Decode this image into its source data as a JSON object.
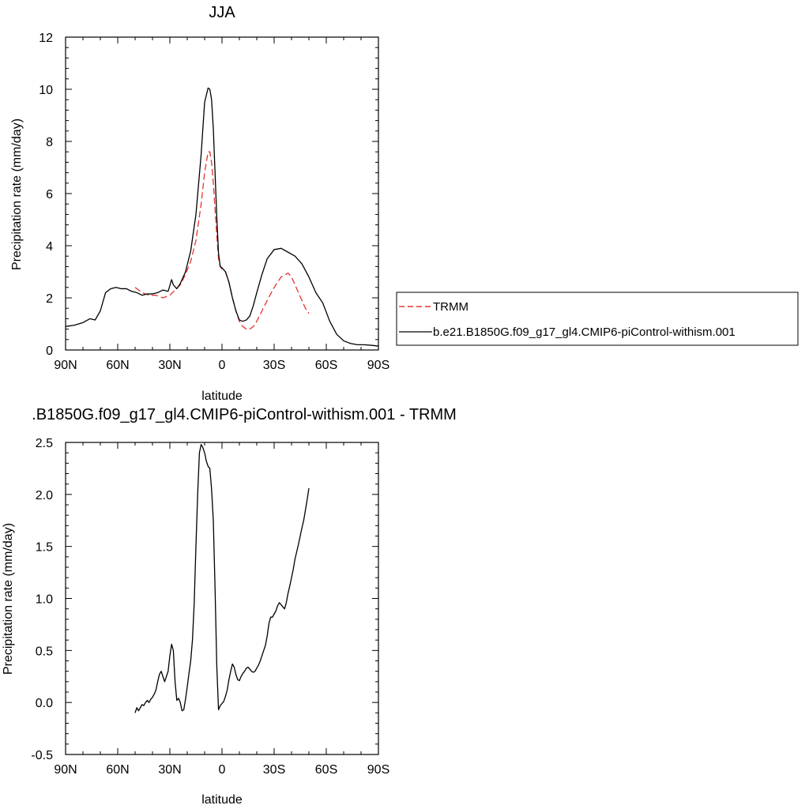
{
  "chart_data": [
    {
      "type": "line",
      "title": "JJA",
      "xlabel": "latitude",
      "ylabel": "Precipitation rate (mm/day)",
      "xlim": [
        90,
        -90
      ],
      "ylim": [
        0,
        12
      ],
      "x_ticks": [
        90,
        60,
        30,
        0,
        -30,
        -60,
        -90
      ],
      "x_tick_labels": [
        "90N",
        "60N",
        "30N",
        "0",
        "30S",
        "60S",
        "90S"
      ],
      "y_ticks": [
        0,
        2,
        4,
        6,
        8,
        10,
        12
      ],
      "y_tick_labels": [
        "0",
        "2",
        "4",
        "6",
        "8",
        "10",
        "12"
      ],
      "legend_position": "right",
      "series": [
        {
          "name": "TRMM",
          "color": "#e8322b",
          "style": "dashed",
          "x": [
            50,
            46,
            42,
            38,
            34,
            30,
            27,
            24,
            21,
            18,
            15,
            12,
            10,
            8,
            7,
            6,
            5,
            4,
            3,
            2,
            1,
            0,
            -2,
            -4,
            -6,
            -8,
            -10,
            -12,
            -14,
            -16,
            -18,
            -20,
            -23,
            -26,
            -30,
            -34,
            -38,
            -40,
            -42,
            -44,
            -46,
            -48,
            -50
          ],
          "y": [
            2.4,
            2.2,
            2.1,
            2.1,
            2.0,
            2.1,
            2.3,
            2.5,
            2.9,
            3.4,
            4.2,
            5.6,
            6.8,
            7.6,
            7.6,
            7.2,
            6.4,
            5.4,
            4.4,
            3.5,
            3.2,
            3.1,
            3.0,
            2.6,
            2.0,
            1.5,
            1.1,
            0.9,
            0.8,
            0.8,
            0.9,
            1.1,
            1.5,
            1.9,
            2.4,
            2.8,
            2.95,
            2.8,
            2.5,
            2.2,
            1.9,
            1.6,
            1.4
          ]
        },
        {
          "name": "b.e21.B1850G.f09_g17_gl4.CMIP6-piControl-withism.001",
          "color": "#000000",
          "style": "solid",
          "x": [
            90,
            85,
            80,
            76,
            73,
            70,
            67,
            64,
            61,
            58,
            55,
            52,
            49,
            46,
            43,
            40,
            37,
            34,
            31,
            29,
            28,
            26,
            24,
            21,
            18,
            15,
            12,
            10,
            8,
            7,
            6,
            5,
            4,
            3,
            2,
            1,
            0,
            -2,
            -4,
            -6,
            -8,
            -10,
            -12,
            -14,
            -16,
            -18,
            -20,
            -23,
            -26,
            -30,
            -34,
            -38,
            -42,
            -46,
            -50,
            -54,
            -58,
            -62,
            -66,
            -70,
            -74,
            -78,
            -82,
            -86,
            -90
          ],
          "y": [
            0.9,
            0.95,
            1.05,
            1.2,
            1.15,
            1.5,
            2.2,
            2.35,
            2.4,
            2.35,
            2.35,
            2.25,
            2.2,
            2.1,
            2.15,
            2.15,
            2.2,
            2.3,
            2.25,
            2.7,
            2.5,
            2.35,
            2.55,
            3.0,
            3.8,
            5.2,
            7.5,
            9.5,
            10.05,
            10.0,
            9.6,
            8.5,
            6.8,
            5.1,
            3.7,
            3.2,
            3.15,
            3.0,
            2.6,
            2.0,
            1.5,
            1.15,
            1.1,
            1.15,
            1.3,
            1.7,
            2.2,
            2.9,
            3.5,
            3.85,
            3.9,
            3.75,
            3.6,
            3.3,
            2.8,
            2.2,
            1.8,
            1.1,
            0.6,
            0.35,
            0.25,
            0.2,
            0.2,
            0.18,
            0.15
          ]
        }
      ]
    },
    {
      "type": "line",
      "title": ".B1850G.f09_g17_gl4.CMIP6-piControl-withism.001 - TRMM",
      "xlabel": "latitude",
      "ylabel": "Precipitation rate (mm/day)",
      "xlim": [
        90,
        -90
      ],
      "ylim": [
        -0.5,
        2.5
      ],
      "x_ticks": [
        90,
        60,
        30,
        0,
        -30,
        -60,
        -90
      ],
      "x_tick_labels": [
        "90N",
        "60N",
        "30N",
        "0",
        "30S",
        "60S",
        "90S"
      ],
      "y_ticks": [
        -0.5,
        0.0,
        0.5,
        1.0,
        1.5,
        2.0,
        2.5
      ],
      "y_tick_labels": [
        "-0.5",
        "0.0",
        "0.5",
        "1.0",
        "1.5",
        "2.0",
        "2.5"
      ],
      "series": [
        {
          "color": "#000000",
          "style": "solid",
          "x": [
            50,
            49,
            48,
            47,
            46,
            45,
            44,
            43,
            42,
            41,
            40,
            39,
            38,
            37,
            36,
            35,
            34,
            33,
            32,
            31,
            30,
            29,
            28,
            27,
            26,
            25,
            24,
            23,
            22,
            21,
            20,
            19,
            18,
            17,
            16,
            15,
            14,
            13,
            12,
            11,
            10,
            9,
            8,
            7,
            6,
            5,
            4,
            3,
            2,
            1,
            0,
            -1,
            -2,
            -3,
            -4,
            -5,
            -6,
            -7,
            -8,
            -9,
            -10,
            -11,
            -12,
            -13,
            -14,
            -15,
            -16,
            -17,
            -18,
            -19,
            -20,
            -21,
            -22,
            -23,
            -24,
            -25,
            -26,
            -27,
            -28,
            -29,
            -30,
            -31,
            -32,
            -33,
            -34,
            -35,
            -36,
            -37,
            -38,
            -39,
            -40,
            -41,
            -42,
            -43,
            -44,
            -45,
            -46,
            -47,
            -48,
            -49,
            -50
          ],
          "y": [
            -0.1,
            -0.05,
            -0.08,
            -0.05,
            -0.02,
            -0.03,
            0.0,
            0.02,
            0.0,
            0.03,
            0.05,
            0.08,
            0.12,
            0.2,
            0.27,
            0.3,
            0.25,
            0.2,
            0.25,
            0.3,
            0.45,
            0.56,
            0.5,
            0.2,
            0.02,
            0.04,
            0.0,
            -0.08,
            -0.07,
            0.03,
            0.15,
            0.28,
            0.4,
            0.6,
            0.95,
            1.5,
            2.0,
            2.4,
            2.48,
            2.45,
            2.4,
            2.32,
            2.27,
            2.25,
            2.05,
            1.75,
            1.1,
            0.35,
            -0.07,
            -0.03,
            -0.01,
            0.01,
            0.06,
            0.12,
            0.22,
            0.3,
            0.37,
            0.34,
            0.27,
            0.22,
            0.21,
            0.25,
            0.28,
            0.3,
            0.33,
            0.34,
            0.32,
            0.3,
            0.29,
            0.3,
            0.33,
            0.36,
            0.4,
            0.45,
            0.5,
            0.55,
            0.64,
            0.76,
            0.82,
            0.82,
            0.85,
            0.88,
            0.93,
            0.96,
            0.94,
            0.92,
            0.9,
            0.96,
            1.05,
            1.12,
            1.2,
            1.28,
            1.38,
            1.45,
            1.52,
            1.6,
            1.68,
            1.75,
            1.85,
            1.95,
            2.06
          ]
        }
      ]
    }
  ]
}
